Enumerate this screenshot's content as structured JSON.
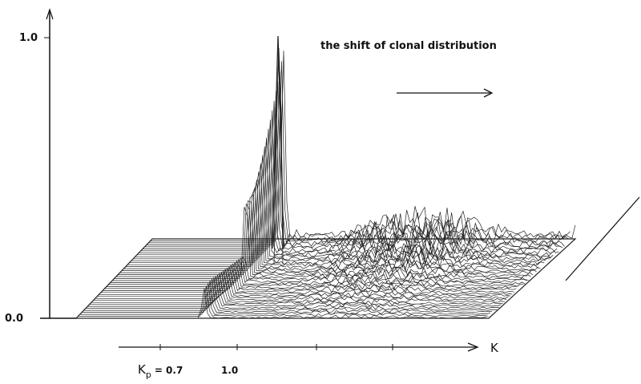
{
  "y_axis": {
    "top_label": "1.0",
    "bottom_label": "0.0"
  },
  "annotation": "the shift of clonal distribution",
  "x_axis": {
    "label": "K",
    "kp_label": {
      "base": "K",
      "sub": "p",
      "rest": "= 0.7"
    },
    "one_label": "1.0"
  }
}
